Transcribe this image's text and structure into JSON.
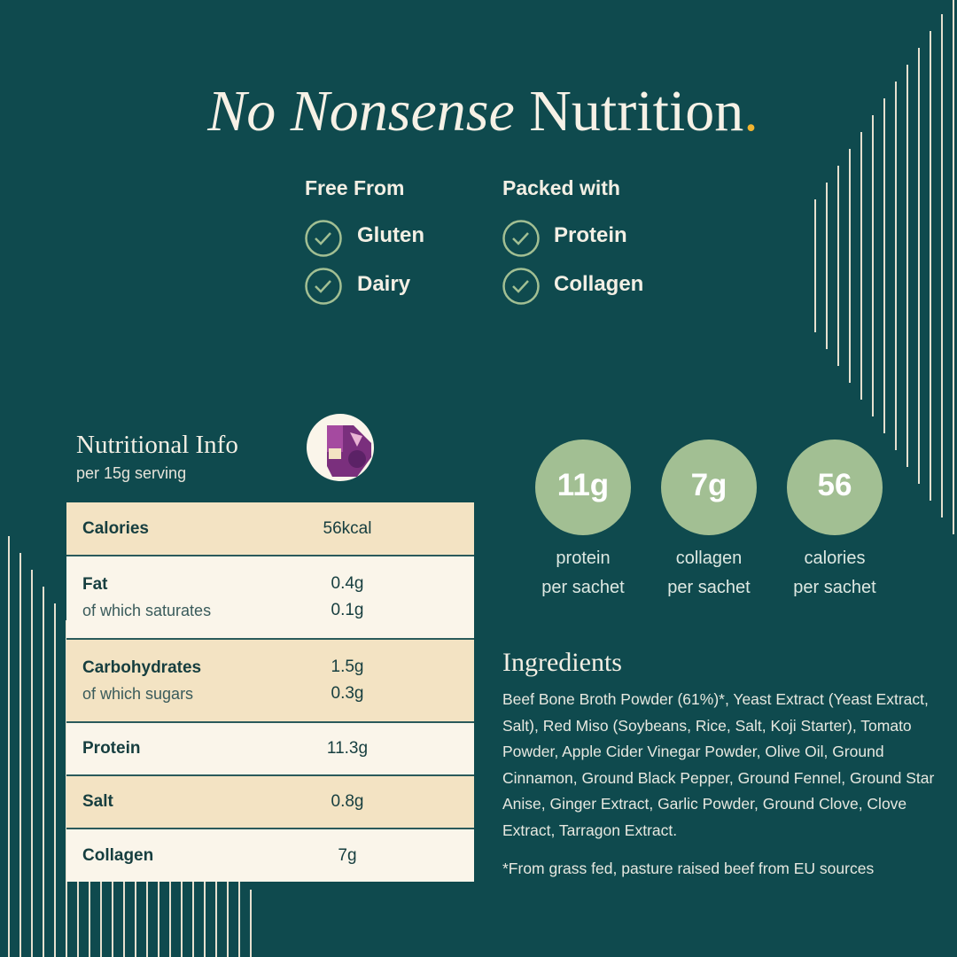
{
  "title": {
    "italic": "No Nonsense",
    "regular": "Nutrition",
    "dot": "."
  },
  "free_from": {
    "heading": "Free From",
    "items": [
      "Gluten",
      "Dairy"
    ]
  },
  "packed_with": {
    "heading": "Packed with",
    "items": [
      "Protein",
      "Collagen"
    ]
  },
  "nutrition": {
    "heading": "Nutritional Info",
    "subheading": "per 15g serving",
    "rows": [
      {
        "label": "Calories",
        "value": "56kcal"
      },
      {
        "label": "Fat",
        "value": "0.4g",
        "sub_label": "of which saturates",
        "sub_value": "0.1g"
      },
      {
        "label": "Carbohydrates",
        "value": "1.5g",
        "sub_label": "of which sugars",
        "sub_value": "0.3g"
      },
      {
        "label": "Protein",
        "value": "11.3g"
      },
      {
        "label": "Salt",
        "value": "0.8g"
      },
      {
        "label": "Collagen",
        "value": "7g"
      }
    ]
  },
  "stats": [
    {
      "value": "11g",
      "caption": [
        "protein",
        "per sachet"
      ]
    },
    {
      "value": "7g",
      "caption": [
        "collagen",
        "per sachet"
      ]
    },
    {
      "value": "56",
      "caption": [
        "calories",
        "per sachet"
      ]
    }
  ],
  "ingredients": {
    "heading": "Ingredients",
    "text": "Beef Bone Broth Powder (61%)*, Yeast Extract (Yeast Extract, Salt), Red Miso (Soybeans, Rice, Salt, Koji Starter), Tomato Powder, Apple Cider Vinegar Powder, Olive Oil, Ground Cinnamon, Ground Black Pepper, Ground Fennel, Ground Star Anise, Ginger Extract, Garlic Powder, Ground Clove, Clove Extract, Tarragon Extract.",
    "footnote": "*From grass fed, pasture raised beef from EU sources"
  }
}
